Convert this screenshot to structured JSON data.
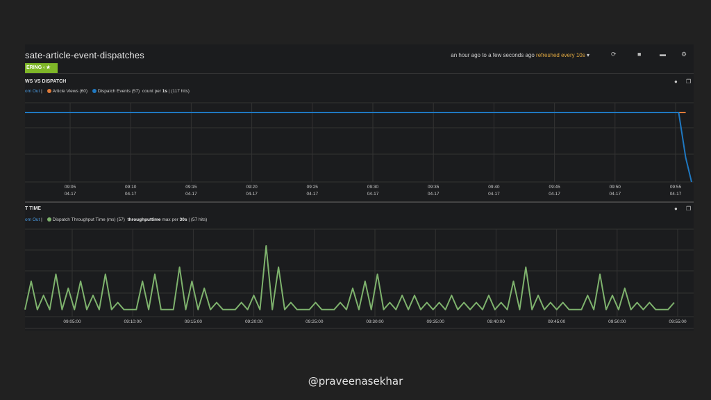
{
  "dashboard": {
    "title": "sate-article-event-dispatches",
    "time_range": "an hour ago to a few seconds ago",
    "refresh": "refreshed every 10s",
    "tag_label": "ERING ‹ ★"
  },
  "panels": [
    {
      "title": "WS VS DISPATCH",
      "zoom_out": "om Out",
      "legend": [
        {
          "label": "Article Views (60)",
          "color": "#e07b39"
        },
        {
          "label": "Dispatch Events (57)",
          "color": "#1f78c1"
        }
      ],
      "legend_suffix_pre": "count per",
      "legend_suffix_bold": "1s",
      "legend_suffix_post": "| (117 hits)"
    },
    {
      "title": "T TIME",
      "zoom_out": "om Out",
      "legend": [
        {
          "label": "Dispatch Throughput Time (ms) (57)",
          "color": "#7eb26d"
        }
      ],
      "legend_suffix_bold": "throughputtime",
      "legend_suffix_mid": "max per",
      "legend_suffix_bold2": "30s",
      "legend_suffix_post": "| (57 hits)"
    }
  ],
  "chart_data": [
    {
      "type": "line",
      "x_ticks": [
        "09:05\n04-17",
        "09:10\n04-17",
        "09:15\n04-17",
        "09:20\n04-17",
        "09:25\n04-17",
        "09:30\n04-17",
        "09:35\n04-17",
        "09:40\n04-17",
        "09:45\n04-17",
        "09:50\n04-17",
        "09:55\n04-17"
      ],
      "series": [
        {
          "name": "Article Views (60)",
          "color": "#e07b39",
          "x": [
            0,
            55.8,
            56.4
          ],
          "y": [
            1,
            1,
            1
          ]
        },
        {
          "name": "Dispatch Events (57)",
          "color": "#1f78c1",
          "x": [
            0,
            55.8,
            56.4,
            56.9
          ],
          "y": [
            1,
            1,
            0.35,
            0
          ]
        }
      ],
      "grid": true
    },
    {
      "type": "line",
      "x_ticks": [
        "09:05:00",
        "09:10:00",
        "09:15:00",
        "09:20:00",
        "09:25:00",
        "09:30:00",
        "09:35:00",
        "09:40:00",
        "09:45:00",
        "09:50:00",
        "09:55:00"
      ],
      "series": [
        {
          "name": "Dispatch Throughput Time (ms) (57)",
          "color": "#7eb26d",
          "values": [
            1,
            5,
            1,
            3,
            1,
            6,
            1,
            4,
            1,
            5,
            1,
            3,
            1,
            6,
            1,
            2,
            1,
            1,
            1,
            5,
            1,
            6,
            1,
            1,
            1,
            7,
            1,
            5,
            1,
            4,
            1,
            2,
            1,
            1,
            1,
            2,
            1,
            3,
            1,
            10,
            1,
            7,
            1,
            2,
            1,
            1,
            1,
            2,
            1,
            1,
            1,
            2,
            1,
            4,
            1,
            5,
            1,
            6,
            1,
            2,
            1,
            3,
            1,
            3,
            1,
            2,
            1,
            2,
            1,
            3,
            1,
            2,
            1,
            2,
            1,
            3,
            1,
            2,
            1,
            5,
            1,
            7,
            1,
            3,
            1,
            2,
            1,
            2,
            1,
            1,
            1,
            3,
            1,
            6,
            1,
            3,
            1,
            4,
            1,
            2,
            1,
            2,
            1,
            1,
            1,
            2
          ]
        }
      ],
      "grid": true
    }
  ],
  "footer": "@praveenasekhar"
}
